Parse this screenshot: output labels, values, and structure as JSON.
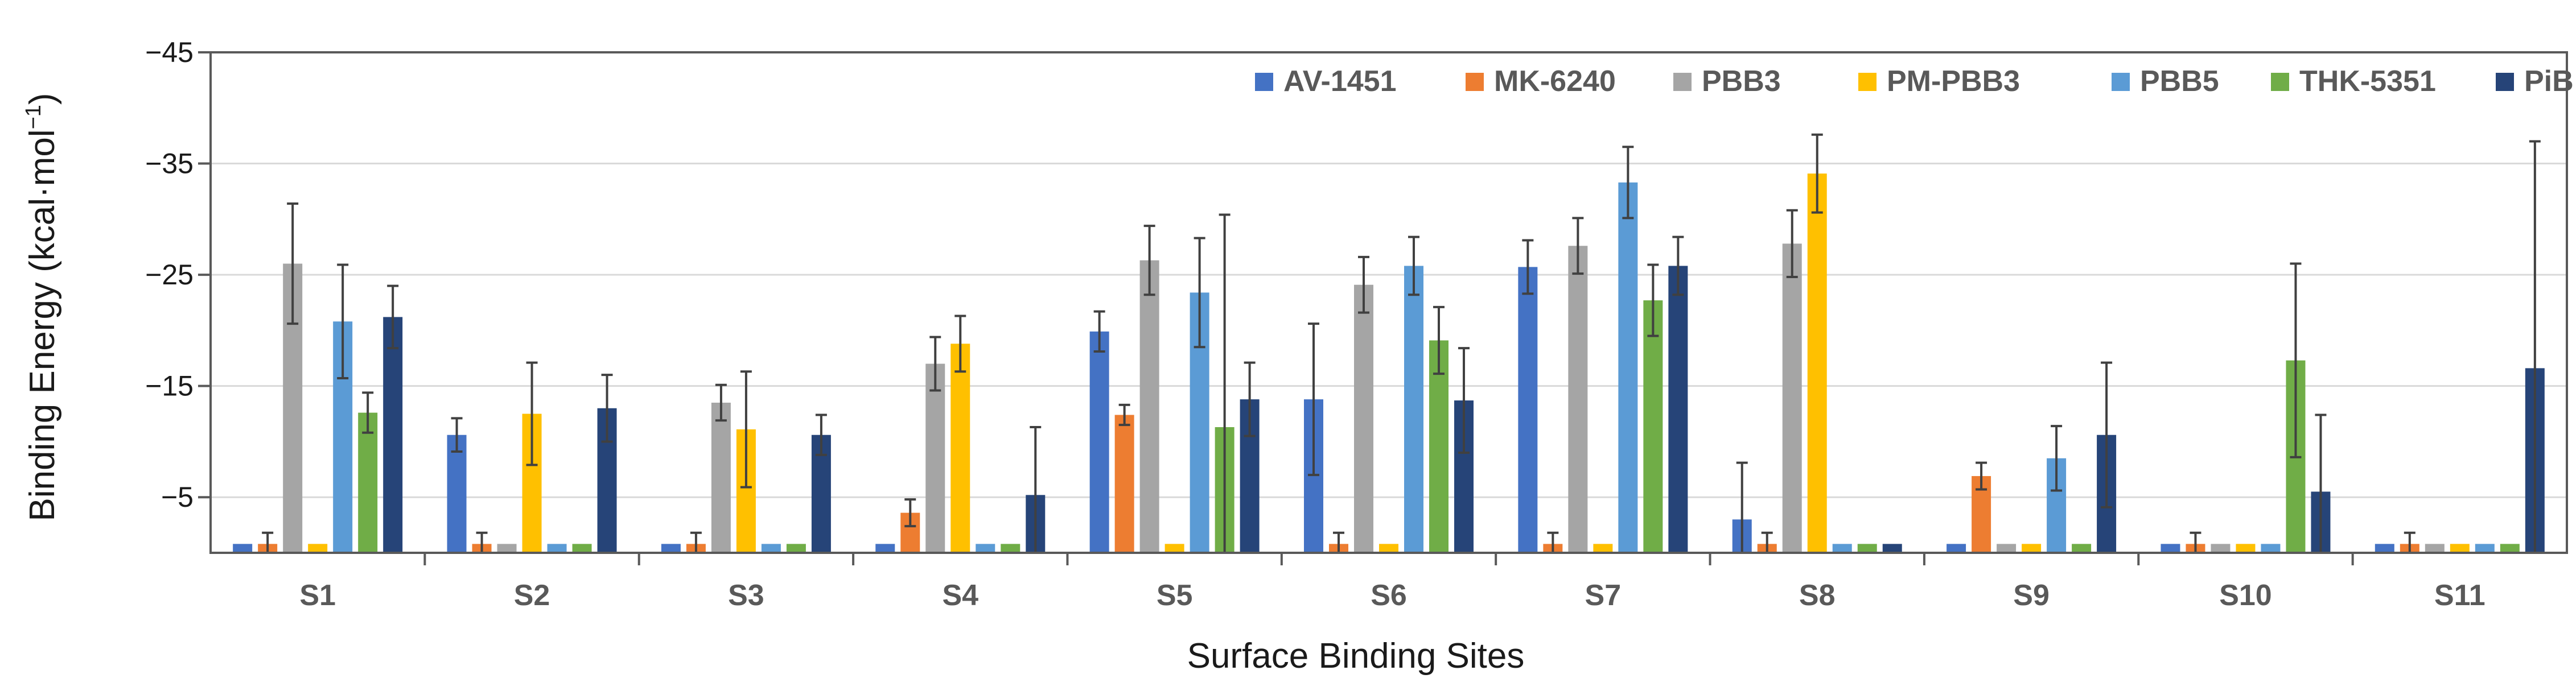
{
  "chart_data": {
    "type": "bar",
    "title": "",
    "xlabel": "Surface Binding Sites",
    "ylabel_main": "Binding Energy (kcal·mol",
    "ylabel_sup": "−1",
    "ylabel_close": ")",
    "ylim": [
      0,
      45
    ],
    "yticks": [
      5,
      15,
      25,
      35,
      45
    ],
    "ytick_labels": [
      "−5",
      "−15",
      "−25",
      "−35",
      "−45"
    ],
    "grid": true,
    "legend_position": "top-right",
    "categories": [
      "S1",
      "S2",
      "S3",
      "S4",
      "S5",
      "S6",
      "S7",
      "S8",
      "S9",
      "S10",
      "S11"
    ],
    "series": [
      {
        "name": "AV-1451",
        "color": "#4472C4",
        "values": [
          0.8,
          10.6,
          0.8,
          0.8,
          19.9,
          13.8,
          25.7,
          3.0,
          0.8,
          0.8,
          0.8
        ],
        "errors": [
          0,
          1.5,
          0,
          0,
          1.8,
          6.8,
          2.4,
          5.1,
          0,
          0,
          0
        ]
      },
      {
        "name": "MK-6240",
        "color": "#ED7D31",
        "values": [
          0.8,
          0.8,
          0.8,
          3.6,
          12.4,
          0.8,
          0.8,
          0.8,
          6.9,
          0.8,
          0.8
        ],
        "errors": [
          1.0,
          1.0,
          1.0,
          1.2,
          0.9,
          1.0,
          1.0,
          1.0,
          1.2,
          1.0,
          1.0
        ]
      },
      {
        "name": "PBB3",
        "color": "#A5A5A5",
        "values": [
          26.0,
          0.8,
          13.5,
          17.0,
          26.3,
          24.1,
          27.6,
          27.8,
          0.8,
          0.8,
          0.8
        ],
        "errors": [
          5.4,
          0,
          1.6,
          2.4,
          3.1,
          2.5,
          2.5,
          3.0,
          0,
          0,
          0
        ]
      },
      {
        "name": "PM-PBB3",
        "color": "#FFC000",
        "values": [
          0.8,
          12.5,
          11.1,
          18.8,
          0.8,
          0.8,
          0.8,
          34.1,
          0.8,
          0.8,
          0.8
        ],
        "errors": [
          0,
          4.6,
          5.2,
          2.5,
          0,
          0,
          0,
          3.5,
          0,
          0,
          0
        ]
      },
      {
        "name": "PBB5",
        "color": "#5B9BD5",
        "values": [
          20.8,
          0.8,
          0.8,
          0.8,
          23.4,
          25.8,
          33.3,
          0.8,
          8.5,
          0.8,
          0.8
        ],
        "errors": [
          5.1,
          0,
          0,
          0,
          4.9,
          2.6,
          3.2,
          0,
          2.9,
          0,
          0
        ]
      },
      {
        "name": "THK-5351",
        "color": "#70AD47",
        "values": [
          12.6,
          0.8,
          0.8,
          0.8,
          11.3,
          19.1,
          22.7,
          0.8,
          0.8,
          17.3,
          0.8
        ],
        "errors": [
          1.8,
          0,
          0,
          0,
          19.1,
          3.0,
          3.2,
          0,
          0,
          8.7,
          0
        ]
      },
      {
        "name": "PiB",
        "color": "#264478",
        "values": [
          21.2,
          13.0,
          10.6,
          5.2,
          13.8,
          13.7,
          25.8,
          0.8,
          10.6,
          5.5,
          16.6
        ],
        "errors": [
          2.8,
          3.0,
          1.8,
          6.1,
          3.3,
          4.7,
          2.6,
          0,
          6.5,
          6.9,
          20.4
        ]
      }
    ]
  }
}
